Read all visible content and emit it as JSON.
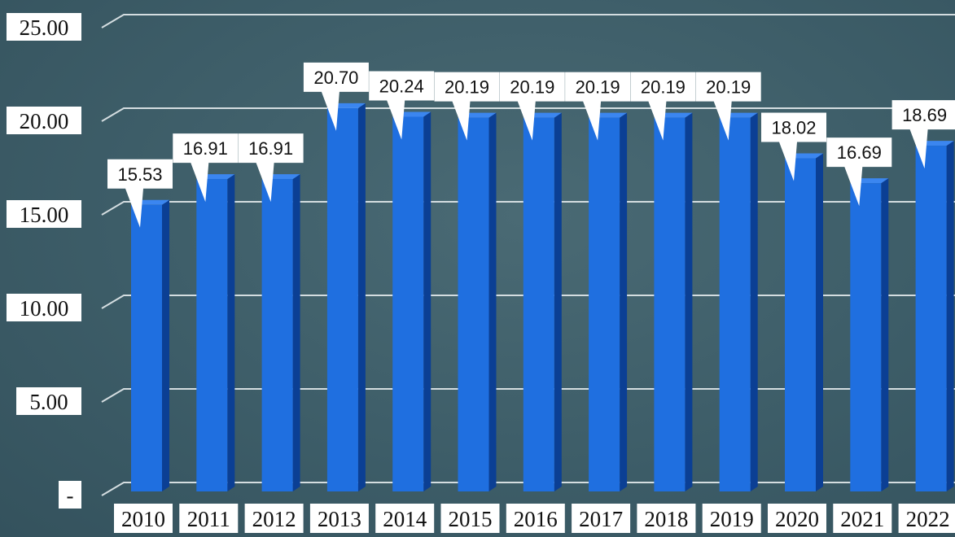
{
  "chart_data": {
    "type": "bar",
    "categories": [
      "2010",
      "2011",
      "2012",
      "2013",
      "2014",
      "2015",
      "2016",
      "2017",
      "2018",
      "2019",
      "2020",
      "2021",
      "2022"
    ],
    "values": [
      15.53,
      16.91,
      16.91,
      20.7,
      20.24,
      20.19,
      20.19,
      20.19,
      20.19,
      20.19,
      18.02,
      16.69,
      18.69
    ],
    "data_labels": [
      "15.53",
      "16.91",
      "16.91",
      "20.70",
      "20.24",
      "20.19",
      "20.19",
      "20.19",
      "20.19",
      "20.19",
      "18.02",
      "16.69",
      "18.69"
    ],
    "yticks": [
      "-",
      "5.00",
      "10.00",
      "15.00",
      "20.00",
      "25.00"
    ],
    "ylim": [
      0,
      25
    ],
    "grid": true,
    "bar_color": "#1f6fe0",
    "bar_shadow_color": "#0b3f94",
    "title": "",
    "xlabel": "",
    "ylabel": ""
  }
}
